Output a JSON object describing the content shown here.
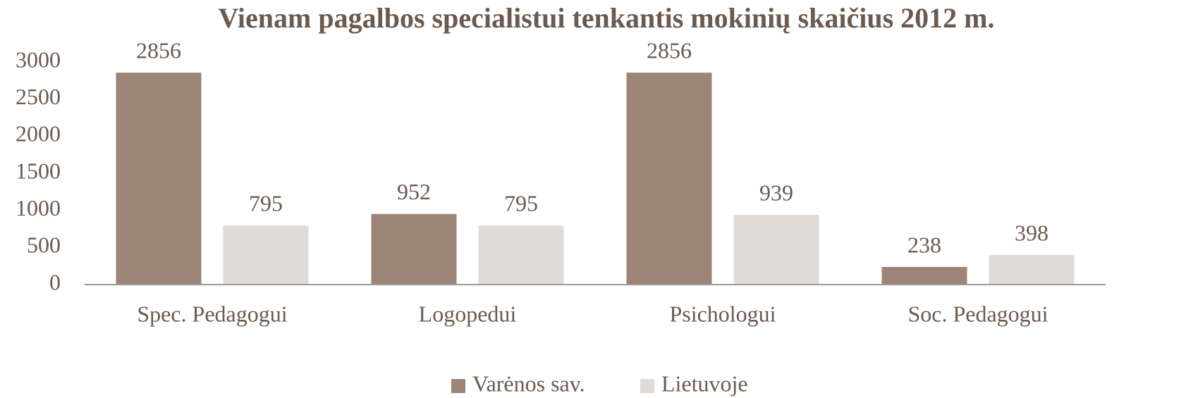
{
  "chart_data": {
    "type": "bar",
    "title": "Vienam pagalbos specialistui tenkantis mokinių skaičius 2012 m.",
    "categories": [
      "Spec. Pedagogui",
      "Logopedui",
      "Psichologui",
      "Soc. Pedagogui"
    ],
    "series": [
      {
        "name": "Varėnos sav.",
        "color": "#9c8577",
        "values": [
          2856,
          952,
          2856,
          238
        ]
      },
      {
        "name": "Lietuvoje",
        "color": "#e0dbd7",
        "values": [
          795,
          795,
          939,
          398
        ]
      }
    ],
    "ylim": [
      0,
      3000
    ],
    "yticks": [
      0,
      500,
      1000,
      1500,
      2000,
      2500,
      3000
    ],
    "grid": false,
    "legend": "bottom",
    "data_labels": true
  }
}
